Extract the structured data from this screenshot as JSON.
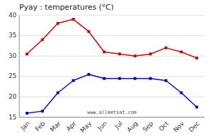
{
  "chart_data": {
    "type": "line",
    "title": "Pyay : temperatures (°C)",
    "categories": [
      "Jan",
      "Feb",
      "Mar",
      "Apr",
      "May",
      "Jun",
      "Jul",
      "Aug",
      "Sep",
      "Oct",
      "Nov",
      "Dec"
    ],
    "series": [
      {
        "color": "#cc0000",
        "marker": "square",
        "line_style": "solid",
        "values": [
          30.5,
          34.0,
          38.0,
          39.0,
          36.0,
          31.0,
          30.5,
          30.0,
          30.5,
          32.0,
          31.0,
          29.5
        ]
      },
      {
        "color": "#0000cc",
        "marker": "square",
        "line_style": "solid",
        "values": [
          16.0,
          16.5,
          21.0,
          24.0,
          25.5,
          24.5,
          24.5,
          24.5,
          24.5,
          24.0,
          21.0,
          17.5
        ]
      }
    ],
    "ylim": [
      15,
      40
    ],
    "yticks": [
      15,
      20,
      25,
      30,
      35,
      40
    ],
    "grid": true,
    "annotations": [
      "www.allmetsat.com"
    ]
  }
}
